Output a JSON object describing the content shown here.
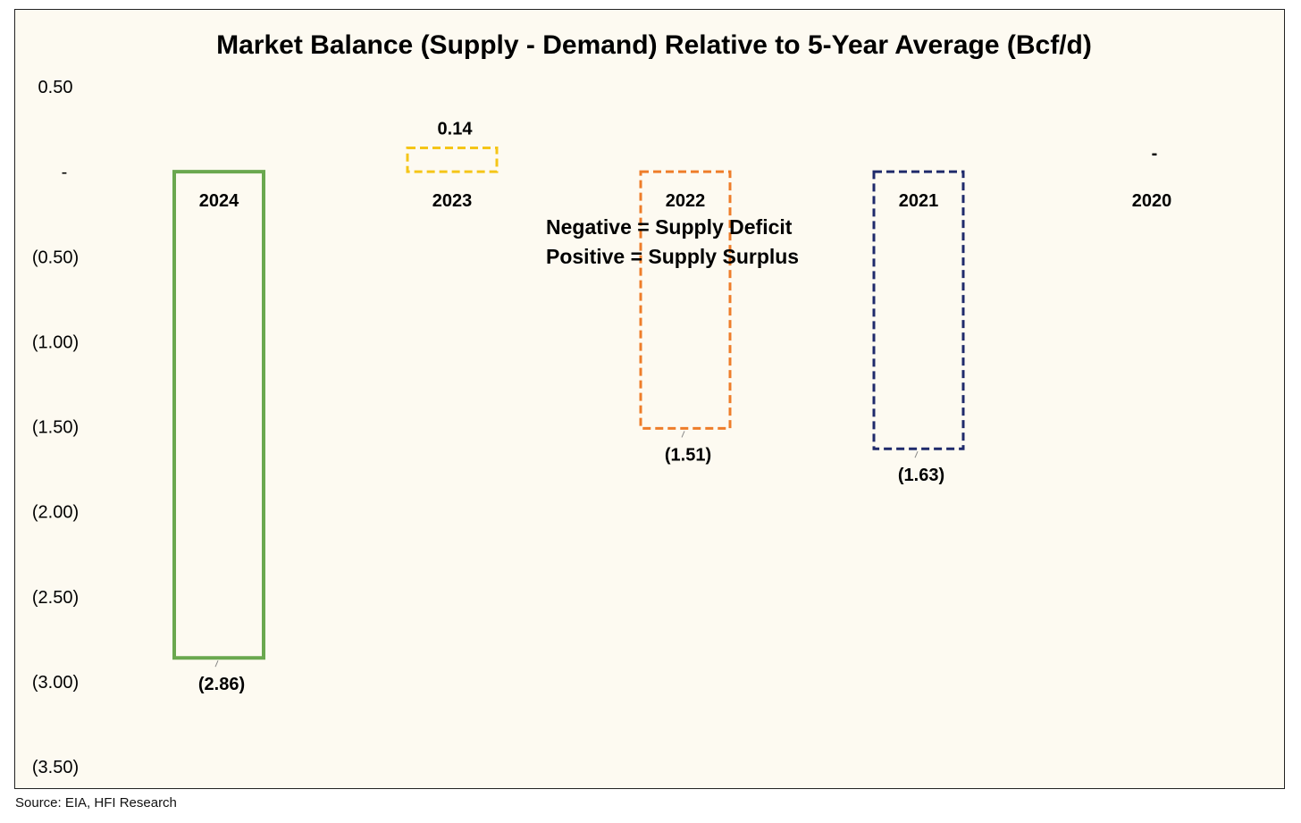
{
  "chart_data": {
    "type": "bar",
    "title": "Market Balance (Supply - Demand) Relative to 5-Year Average (Bcf/d)",
    "xlabel": "",
    "ylabel": "",
    "ylim": [
      -3.5,
      0.5
    ],
    "yticks": [
      0.5,
      0,
      -0.5,
      -1.0,
      -1.5,
      -2.0,
      -2.5,
      -3.0,
      -3.5
    ],
    "ytick_labels": [
      "0.50",
      "-",
      "(0.50)",
      "(1.00)",
      "(1.50)",
      "(2.00)",
      "(2.50)",
      "(3.00)",
      "(3.50)"
    ],
    "categories": [
      "2024",
      "2023",
      "2022",
      "2021",
      "2020"
    ],
    "values": [
      -2.86,
      0.14,
      -1.51,
      -1.63,
      0
    ],
    "data_labels": [
      "(2.86)",
      "0.14",
      "(1.51)",
      "(1.63)",
      "-"
    ],
    "bar_colors": [
      "#6aa84f",
      "#f5c518",
      "#ee7d2a",
      "#1f2a6b",
      "#888888"
    ],
    "bar_styles": [
      "solid",
      "dashed",
      "dashed",
      "dashed",
      "dashed"
    ],
    "grid": false,
    "legend": null,
    "annotations": [
      "Negative = Supply Deficit",
      "Positive = Supply Surplus"
    ]
  },
  "source": "Source: EIA, HFI Research"
}
